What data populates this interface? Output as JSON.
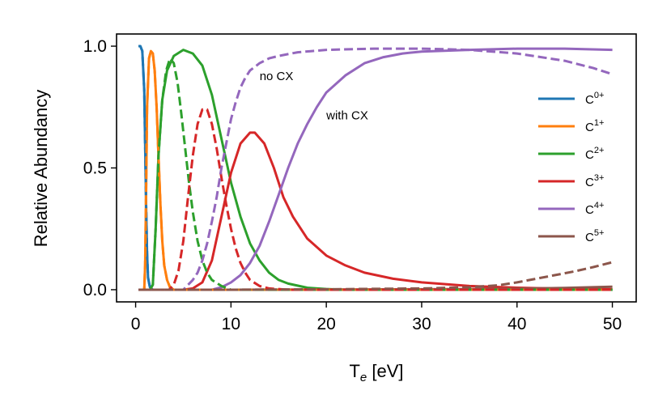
{
  "chart_data": {
    "type": "line",
    "xlabel": "Te [eV]",
    "xlabel_main": "T",
    "xlabel_sub": "e",
    "xlabel_rest": " [eV]",
    "ylabel": "Relative Abundancy",
    "xlim": [
      -2,
      52.5
    ],
    "ylim": [
      -0.05,
      1.05
    ],
    "x_ticks": [
      0,
      10,
      20,
      30,
      40,
      50
    ],
    "x_tick_labels": [
      "0",
      "10",
      "20",
      "30",
      "40",
      "50"
    ],
    "y_ticks": [
      0.0,
      0.5,
      1.0
    ],
    "y_tick_labels": [
      "0.0",
      "0.5",
      "1.0"
    ],
    "legend_position": "right",
    "annotations": [
      {
        "text": "no CX",
        "x": 13.0,
        "y": 0.86
      },
      {
        "text": "with CX",
        "x": 20.0,
        "y": 0.7
      }
    ],
    "series": [
      {
        "name_base": "C",
        "name_sup": "0+",
        "color": "#1f77b4",
        "with_cx": [
          [
            0.3,
            1.0
          ],
          [
            0.5,
            1.0
          ],
          [
            0.7,
            0.98
          ],
          [
            0.9,
            0.82
          ],
          [
            1.0,
            0.6
          ],
          [
            1.1,
            0.35
          ],
          [
            1.2,
            0.15
          ],
          [
            1.3,
            0.05
          ],
          [
            1.5,
            0.01
          ],
          [
            1.8,
            0.0
          ],
          [
            50,
            0.0
          ]
        ],
        "no_cx": [
          [
            0.3,
            1.0
          ],
          [
            0.5,
            1.0
          ],
          [
            0.7,
            0.98
          ],
          [
            0.9,
            0.82
          ],
          [
            1.0,
            0.6
          ],
          [
            1.1,
            0.35
          ],
          [
            1.2,
            0.15
          ],
          [
            1.3,
            0.05
          ],
          [
            1.5,
            0.01
          ],
          [
            1.8,
            0.0
          ],
          [
            50,
            0.0
          ]
        ]
      },
      {
        "name_base": "C",
        "name_sup": "1+",
        "color": "#ff7f0e",
        "with_cx": [
          [
            0.3,
            0.0
          ],
          [
            0.9,
            0.0
          ],
          [
            1.0,
            0.1
          ],
          [
            1.1,
            0.4
          ],
          [
            1.2,
            0.75
          ],
          [
            1.4,
            0.95
          ],
          [
            1.6,
            0.98
          ],
          [
            1.8,
            0.97
          ],
          [
            2.0,
            0.9
          ],
          [
            2.2,
            0.75
          ],
          [
            2.4,
            0.55
          ],
          [
            2.6,
            0.35
          ],
          [
            2.8,
            0.2
          ],
          [
            3.0,
            0.1
          ],
          [
            3.3,
            0.04
          ],
          [
            3.6,
            0.01
          ],
          [
            4.0,
            0.0
          ],
          [
            50,
            0.0
          ]
        ],
        "no_cx": [
          [
            0.3,
            0.0
          ],
          [
            0.9,
            0.0
          ],
          [
            1.0,
            0.1
          ],
          [
            1.1,
            0.4
          ],
          [
            1.2,
            0.75
          ],
          [
            1.4,
            0.95
          ],
          [
            1.6,
            0.98
          ],
          [
            1.8,
            0.97
          ],
          [
            2.0,
            0.9
          ],
          [
            2.2,
            0.75
          ],
          [
            2.4,
            0.55
          ],
          [
            2.6,
            0.35
          ],
          [
            2.8,
            0.2
          ],
          [
            3.0,
            0.1
          ],
          [
            3.3,
            0.04
          ],
          [
            3.6,
            0.01
          ],
          [
            4.0,
            0.0
          ],
          [
            50,
            0.0
          ]
        ]
      },
      {
        "name_base": "C",
        "name_sup": "2+",
        "color": "#2ca02c",
        "with_cx": [
          [
            0.3,
            0.0
          ],
          [
            1.5,
            0.0
          ],
          [
            1.8,
            0.02
          ],
          [
            2.1,
            0.25
          ],
          [
            2.4,
            0.55
          ],
          [
            2.8,
            0.78
          ],
          [
            3.3,
            0.9
          ],
          [
            4.0,
            0.96
          ],
          [
            5.0,
            0.985
          ],
          [
            6.0,
            0.97
          ],
          [
            7.0,
            0.92
          ],
          [
            8.0,
            0.8
          ],
          [
            9.0,
            0.62
          ],
          [
            10.0,
            0.44
          ],
          [
            11.0,
            0.3
          ],
          [
            12.0,
            0.19
          ],
          [
            13.0,
            0.12
          ],
          [
            14.0,
            0.07
          ],
          [
            15.0,
            0.04
          ],
          [
            16.0,
            0.025
          ],
          [
            18.0,
            0.008
          ],
          [
            20.0,
            0.003
          ],
          [
            22.0,
            0.0
          ],
          [
            50,
            0.0
          ]
        ],
        "no_cx": [
          [
            0.3,
            0.0
          ],
          [
            1.5,
            0.0
          ],
          [
            1.8,
            0.02
          ],
          [
            2.1,
            0.25
          ],
          [
            2.4,
            0.55
          ],
          [
            2.8,
            0.78
          ],
          [
            3.2,
            0.9
          ],
          [
            3.6,
            0.95
          ],
          [
            4.0,
            0.93
          ],
          [
            4.4,
            0.85
          ],
          [
            4.8,
            0.72
          ],
          [
            5.2,
            0.58
          ],
          [
            5.6,
            0.44
          ],
          [
            6.0,
            0.32
          ],
          [
            6.5,
            0.2
          ],
          [
            7.0,
            0.12
          ],
          [
            7.5,
            0.07
          ],
          [
            8.0,
            0.04
          ],
          [
            9.0,
            0.015
          ],
          [
            10.0,
            0.0
          ],
          [
            50,
            0.0
          ]
        ]
      },
      {
        "name_base": "C",
        "name_sup": "3+",
        "color": "#d62728",
        "with_cx": [
          [
            0.3,
            0.0
          ],
          [
            5.0,
            0.0
          ],
          [
            6.0,
            0.005
          ],
          [
            7.0,
            0.03
          ],
          [
            8.0,
            0.12
          ],
          [
            9.0,
            0.3
          ],
          [
            10.0,
            0.48
          ],
          [
            11.0,
            0.6
          ],
          [
            12.0,
            0.645
          ],
          [
            12.5,
            0.645
          ],
          [
            13.5,
            0.6
          ],
          [
            14.5,
            0.5
          ],
          [
            15.5,
            0.38
          ],
          [
            16.5,
            0.3
          ],
          [
            18.0,
            0.21
          ],
          [
            20.0,
            0.14
          ],
          [
            22.0,
            0.1
          ],
          [
            24.0,
            0.07
          ],
          [
            27.0,
            0.045
          ],
          [
            30.0,
            0.03
          ],
          [
            35.0,
            0.015
          ],
          [
            40.0,
            0.008
          ],
          [
            45.0,
            0.004
          ],
          [
            50.0,
            0.002
          ]
        ],
        "no_cx": [
          [
            0.3,
            0.0
          ],
          [
            3.5,
            0.0
          ],
          [
            4.0,
            0.02
          ],
          [
            4.5,
            0.08
          ],
          [
            5.0,
            0.2
          ],
          [
            5.5,
            0.38
          ],
          [
            6.0,
            0.55
          ],
          [
            6.5,
            0.68
          ],
          [
            7.0,
            0.74
          ],
          [
            7.5,
            0.74
          ],
          [
            8.0,
            0.68
          ],
          [
            8.5,
            0.58
          ],
          [
            9.0,
            0.46
          ],
          [
            9.5,
            0.35
          ],
          [
            10.0,
            0.25
          ],
          [
            10.5,
            0.17
          ],
          [
            11.0,
            0.11
          ],
          [
            11.5,
            0.07
          ],
          [
            12.0,
            0.04
          ],
          [
            13.0,
            0.015
          ],
          [
            14.0,
            0.005
          ],
          [
            16.0,
            0.0
          ],
          [
            50,
            0.0
          ]
        ]
      },
      {
        "name_base": "C",
        "name_sup": "4+",
        "color": "#9467bd",
        "with_cx": [
          [
            0.3,
            0.0
          ],
          [
            8.0,
            0.0
          ],
          [
            9.0,
            0.01
          ],
          [
            10.0,
            0.03
          ],
          [
            11.0,
            0.06
          ],
          [
            12.0,
            0.11
          ],
          [
            13.0,
            0.18
          ],
          [
            14.0,
            0.28
          ],
          [
            15.0,
            0.39
          ],
          [
            16.0,
            0.5
          ],
          [
            17.0,
            0.6
          ],
          [
            18.0,
            0.68
          ],
          [
            19.0,
            0.75
          ],
          [
            20.0,
            0.81
          ],
          [
            22.0,
            0.88
          ],
          [
            24.0,
            0.93
          ],
          [
            26.0,
            0.955
          ],
          [
            28.0,
            0.97
          ],
          [
            30.0,
            0.978
          ],
          [
            35.0,
            0.985
          ],
          [
            40.0,
            0.99
          ],
          [
            45.0,
            0.99
          ],
          [
            50.0,
            0.985
          ]
        ],
        "no_cx": [
          [
            0.3,
            0.0
          ],
          [
            5.0,
            0.0
          ],
          [
            5.5,
            0.02
          ],
          [
            6.0,
            0.04
          ],
          [
            6.5,
            0.07
          ],
          [
            7.0,
            0.12
          ],
          [
            7.5,
            0.19
          ],
          [
            8.0,
            0.28
          ],
          [
            8.5,
            0.38
          ],
          [
            9.0,
            0.5
          ],
          [
            9.5,
            0.6
          ],
          [
            10.0,
            0.7
          ],
          [
            10.5,
            0.77
          ],
          [
            11.0,
            0.83
          ],
          [
            11.5,
            0.87
          ],
          [
            12.0,
            0.9
          ],
          [
            13.0,
            0.93
          ],
          [
            14.0,
            0.95
          ],
          [
            15.0,
            0.96
          ],
          [
            17.0,
            0.975
          ],
          [
            20.0,
            0.985
          ],
          [
            25.0,
            0.99
          ],
          [
            30.0,
            0.99
          ],
          [
            35.0,
            0.985
          ],
          [
            40.0,
            0.97
          ],
          [
            45.0,
            0.94
          ],
          [
            48.0,
            0.91
          ],
          [
            50.0,
            0.885
          ]
        ]
      },
      {
        "name_base": "C",
        "name_sup": "5+",
        "color": "#8c564b",
        "with_cx": [
          [
            0.3,
            0.0
          ],
          [
            10.0,
            0.0
          ],
          [
            20.0,
            0.001
          ],
          [
            30.0,
            0.002
          ],
          [
            40.0,
            0.004
          ],
          [
            45.0,
            0.007
          ],
          [
            50.0,
            0.012
          ]
        ],
        "no_cx": [
          [
            0.3,
            0.0
          ],
          [
            10.0,
            0.0
          ],
          [
            20.0,
            0.002
          ],
          [
            30.0,
            0.005
          ],
          [
            35.0,
            0.01
          ],
          [
            38.0,
            0.018
          ],
          [
            40.0,
            0.03
          ],
          [
            42.0,
            0.045
          ],
          [
            44.0,
            0.06
          ],
          [
            46.0,
            0.075
          ],
          [
            48.0,
            0.093
          ],
          [
            50.0,
            0.113
          ]
        ]
      }
    ]
  }
}
